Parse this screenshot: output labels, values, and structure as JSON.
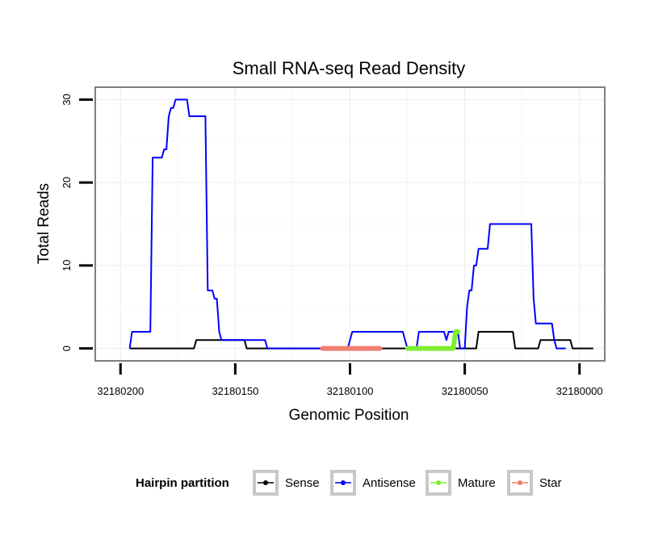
{
  "chart_data": {
    "type": "line",
    "title": "Small RNA-seq Read Density",
    "xlabel": "Genomic Position",
    "ylabel": "Total Reads",
    "x_reversed": true,
    "xlim": [
      32180211,
      32179989
    ],
    "ylim": [
      -1.5,
      31.5
    ],
    "x_ticks": [
      32180200,
      32180150,
      32180100,
      32180050,
      32180000
    ],
    "x_tick_labels": [
      "32180200",
      "32180150",
      "32180100",
      "32180050",
      "32180000"
    ],
    "y_ticks": [
      0,
      10,
      20,
      30
    ],
    "y_tick_labels": [
      "0",
      "10",
      "20",
      "30"
    ],
    "grid": true,
    "legend": {
      "title": "Hairpin partition",
      "position": "bottom",
      "entries": [
        "Sense",
        "Antisense",
        "Mature",
        "Star"
      ]
    },
    "series": [
      {
        "name": "Sense",
        "color": "#000000",
        "points": [
          [
            32180196,
            0
          ],
          [
            32180168,
            0
          ],
          [
            32180167,
            1
          ],
          [
            32180146,
            1
          ],
          [
            32180145,
            0
          ],
          [
            32180045,
            0
          ],
          [
            32180044,
            2
          ],
          [
            32180029,
            2
          ],
          [
            32180028,
            0
          ],
          [
            32180018,
            0
          ],
          [
            32180017,
            1
          ],
          [
            32180004,
            1
          ],
          [
            32180003,
            0
          ],
          [
            32179994,
            0
          ]
        ]
      },
      {
        "name": "Antisense",
        "color": "#0000ff",
        "points": [
          [
            32180196,
            0
          ],
          [
            32180195,
            2
          ],
          [
            32180187,
            2
          ],
          [
            32180186,
            23
          ],
          [
            32180182,
            23
          ],
          [
            32180181,
            24
          ],
          [
            32180180,
            24
          ],
          [
            32180179,
            28
          ],
          [
            32180178,
            29
          ],
          [
            32180177,
            29
          ],
          [
            32180176,
            30
          ],
          [
            32180171,
            30
          ],
          [
            32180170,
            28
          ],
          [
            32180163,
            28
          ],
          [
            32180162,
            7
          ],
          [
            32180160,
            7
          ],
          [
            32180159,
            6
          ],
          [
            32180158,
            6
          ],
          [
            32180157,
            2
          ],
          [
            32180156,
            1
          ],
          [
            32180137,
            1
          ],
          [
            32180136,
            0
          ],
          [
            32180101,
            0
          ],
          [
            32180100,
            1
          ],
          [
            32180099,
            2
          ],
          [
            32180077,
            2
          ],
          [
            32180076,
            1
          ],
          [
            32180075,
            0
          ],
          [
            32180071,
            0
          ],
          [
            32180070,
            2
          ],
          [
            32180059,
            2
          ],
          [
            32180058,
            1
          ],
          [
            32180057,
            2
          ],
          [
            32180053,
            2
          ],
          [
            32180052,
            0
          ],
          [
            32180050,
            0
          ],
          [
            32180049,
            5
          ],
          [
            32180048,
            7
          ],
          [
            32180047,
            7
          ],
          [
            32180046,
            10
          ],
          [
            32180045,
            10
          ],
          [
            32180044,
            12
          ],
          [
            32180040,
            12
          ],
          [
            32180039,
            15
          ],
          [
            32180021,
            15
          ],
          [
            32180020,
            6
          ],
          [
            32180019,
            3
          ],
          [
            32180012,
            3
          ],
          [
            32180011,
            1
          ],
          [
            32180010,
            0
          ],
          [
            32180006,
            0
          ]
        ]
      },
      {
        "name": "Mature",
        "color": "#80ee30",
        "points": [
          [
            32180075,
            0
          ],
          [
            32180055,
            0
          ],
          [
            32180054,
            2
          ],
          [
            32180053,
            2
          ]
        ]
      },
      {
        "name": "Star",
        "color": "#f27f70",
        "points": [
          [
            32180112,
            0
          ],
          [
            32180087,
            0
          ]
        ]
      }
    ]
  }
}
